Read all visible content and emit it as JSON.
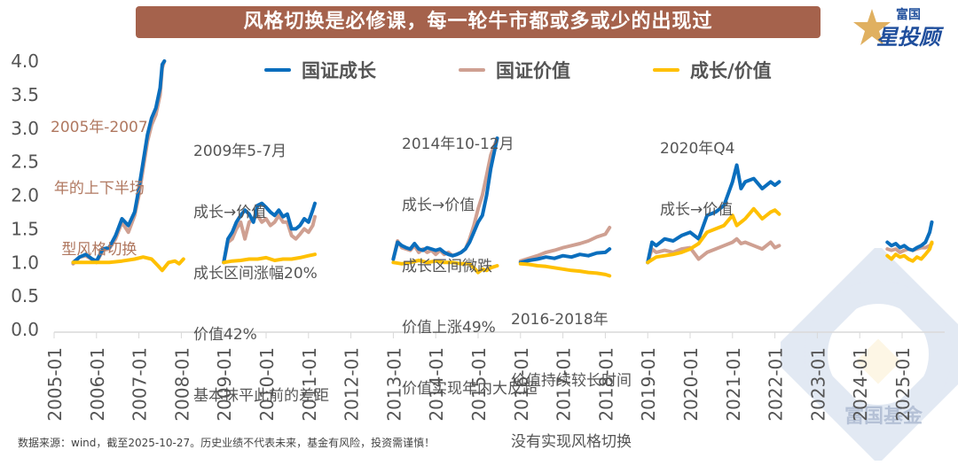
{
  "header": {
    "title": "风格切换是必修课，每一轮牛市都或多或少的出现过",
    "logo_small": "富国",
    "logo_big": "星投顾"
  },
  "footer": {
    "source_note": "数据来源：wind，截至2025-10-27。历史业绩不代表未来，基金有风险，投资需谨慎！"
  },
  "watermark": {
    "text": "富国基金"
  },
  "colors": {
    "growth": "#0a6ebd",
    "value": "#cfa092",
    "ratio": "#ffc000",
    "title_bg": "#a5624c",
    "annotation_brown": "#b07860",
    "text": "#555555"
  },
  "annotations": [
    {
      "id": "a2005",
      "lines": [
        "2005年-2007",
        "年的上下半场",
        "型风格切换"
      ],
      "style": "brown"
    },
    {
      "id": "a2009",
      "lines": [
        "2009年5-7月",
        "成长→价值",
        "成长区间涨幅20%",
        "价值42%",
        "基本抹平此前的差距"
      ],
      "style": "gray"
    },
    {
      "id": "a2014",
      "lines": [
        "2014年10-12月",
        "成长→价值",
        "成长区间微跌",
        "价值上涨49%",
        "价值实现年内大反超"
      ],
      "style": "gray"
    },
    {
      "id": "a2016",
      "lines": [
        "2016-2018年",
        "价值持续较长时间",
        "没有实现风格切换"
      ],
      "style": "gray"
    },
    {
      "id": "a2020",
      "lines": [
        "2020年Q4",
        "成长→价值"
      ],
      "style": "gray"
    }
  ],
  "chart_data": {
    "type": "line",
    "title": "风格切换是必修课，每一轮牛市都或多或少的出现过",
    "xlabel": "",
    "ylabel": "",
    "ylim": [
      0,
      4.0
    ],
    "yticks": [
      "0.0",
      "0.5",
      "1.0",
      "1.5",
      "2.0",
      "2.5",
      "3.0",
      "3.5",
      "4.0"
    ],
    "xlim": [
      2005.0,
      2025.9
    ],
    "xticks": [
      "2005-01",
      "2006-01",
      "2007-01",
      "2008-01",
      "2009-01",
      "2010-01",
      "2011-01",
      "2012-01",
      "2013-01",
      "2014-01",
      "2015-01",
      "2016-01",
      "2017-01",
      "2018-01",
      "2019-01",
      "2020-01",
      "2021-01",
      "2022-01",
      "2023-01",
      "2024-01",
      "2025-01"
    ],
    "grid": false,
    "legend": {
      "position": "top",
      "entries": [
        "国证成长",
        "国证价值",
        "成长/价值"
      ]
    },
    "series": [
      {
        "name": "国证成长",
        "key": "growth",
        "segments": [
          {
            "x": [
              2005.45,
              2005.6,
              2005.75,
              2005.9,
              2006.0,
              2006.15,
              2006.3,
              2006.45,
              2006.6,
              2006.75,
              2006.9,
              2007.0,
              2007.1,
              2007.2,
              2007.3,
              2007.4,
              2007.5,
              2007.55,
              2007.6
            ],
            "y": [
              1.0,
              1.08,
              1.12,
              1.05,
              1.02,
              1.2,
              1.22,
              1.4,
              1.65,
              1.55,
              1.75,
              2.1,
              2.5,
              2.9,
              3.15,
              3.3,
              3.6,
              3.95,
              4.0
            ]
          },
          {
            "x": [
              2009.0,
              2009.1,
              2009.2,
              2009.3,
              2009.4,
              2009.5,
              2009.6,
              2009.7,
              2009.8,
              2009.9,
              2010.0,
              2010.1,
              2010.2,
              2010.3,
              2010.4,
              2010.5,
              2010.6,
              2010.7,
              2010.8,
              2010.9,
              2011.0,
              2011.1,
              2011.15
            ],
            "y": [
              1.0,
              1.35,
              1.45,
              1.6,
              1.7,
              1.78,
              1.72,
              1.6,
              1.85,
              1.88,
              1.82,
              1.75,
              1.7,
              1.78,
              1.68,
              1.72,
              1.5,
              1.5,
              1.55,
              1.65,
              1.6,
              1.78,
              1.88
            ]
          },
          {
            "x": [
              2013.0,
              2013.1,
              2013.2,
              2013.3,
              2013.4,
              2013.5,
              2013.6,
              2013.7,
              2013.8,
              2013.9,
              2014.0,
              2014.1,
              2014.2,
              2014.3,
              2014.4,
              2014.5,
              2014.6,
              2014.7,
              2014.8,
              2014.9,
              2015.0,
              2015.1,
              2015.2,
              2015.3,
              2015.45
            ],
            "y": [
              1.05,
              1.3,
              1.25,
              1.22,
              1.2,
              1.28,
              1.2,
              1.18,
              1.22,
              1.2,
              1.18,
              1.2,
              1.15,
              1.12,
              1.1,
              1.12,
              1.15,
              1.2,
              1.3,
              1.45,
              1.6,
              1.7,
              2.0,
              2.4,
              2.85
            ]
          },
          {
            "x": [
              2016.0,
              2016.2,
              2016.4,
              2016.6,
              2016.8,
              2017.0,
              2017.2,
              2017.4,
              2017.6,
              2017.8,
              2018.0,
              2018.1
            ],
            "y": [
              1.0,
              1.03,
              1.05,
              1.08,
              1.06,
              1.1,
              1.08,
              1.12,
              1.1,
              1.14,
              1.15,
              1.2
            ]
          },
          {
            "x": [
              2019.0,
              2019.1,
              2019.2,
              2019.4,
              2019.6,
              2019.8,
              2020.0,
              2020.2,
              2020.4,
              2020.6,
              2020.8,
              2021.0,
              2021.1,
              2021.2,
              2021.3,
              2021.5,
              2021.7,
              2021.9,
              2022.0,
              2022.1
            ],
            "y": [
              1.0,
              1.3,
              1.25,
              1.35,
              1.32,
              1.4,
              1.45,
              1.35,
              1.7,
              1.75,
              1.85,
              2.2,
              2.45,
              2.1,
              2.2,
              2.25,
              2.1,
              2.2,
              2.15,
              2.2
            ]
          },
          {
            "x": [
              2024.65,
              2024.75,
              2024.85,
              2024.95,
              2025.05,
              2025.15,
              2025.25,
              2025.35,
              2025.45,
              2025.55,
              2025.65,
              2025.7
            ],
            "y": [
              1.3,
              1.25,
              1.28,
              1.22,
              1.25,
              1.2,
              1.18,
              1.22,
              1.25,
              1.3,
              1.45,
              1.6
            ]
          }
        ]
      },
      {
        "name": "国证价值",
        "key": "value",
        "segments": [
          {
            "x": [
              2005.45,
              2005.6,
              2005.75,
              2005.9,
              2006.0,
              2006.15,
              2006.3,
              2006.45,
              2006.6,
              2006.75,
              2006.9,
              2007.0,
              2007.1,
              2007.2,
              2007.3,
              2007.4,
              2007.5,
              2007.55,
              2007.6
            ],
            "y": [
              0.98,
              1.08,
              1.1,
              1.04,
              1.0,
              1.18,
              1.2,
              1.35,
              1.6,
              1.45,
              1.7,
              2.0,
              2.4,
              2.8,
              3.05,
              3.2,
              3.5,
              3.9,
              4.0
            ]
          },
          {
            "x": [
              2009.0,
              2009.1,
              2009.2,
              2009.3,
              2009.4,
              2009.5,
              2009.6,
              2009.7,
              2009.8,
              2009.9,
              2010.0,
              2010.1,
              2010.2,
              2010.3,
              2010.4,
              2010.5,
              2010.6,
              2010.7,
              2010.8,
              2010.9,
              2011.0,
              2011.1,
              2011.15
            ],
            "y": [
              1.0,
              1.3,
              1.35,
              1.5,
              1.6,
              1.35,
              1.6,
              1.65,
              1.7,
              1.6,
              1.65,
              1.55,
              1.6,
              1.7,
              1.6,
              1.6,
              1.4,
              1.35,
              1.42,
              1.5,
              1.45,
              1.55,
              1.68
            ]
          },
          {
            "x": [
              2013.0,
              2013.1,
              2013.2,
              2013.3,
              2013.4,
              2013.5,
              2013.6,
              2013.7,
              2013.8,
              2013.9,
              2014.0,
              2014.1,
              2014.2,
              2014.3,
              2014.4,
              2014.5,
              2014.6,
              2014.7,
              2014.8,
              2014.9,
              2015.0,
              2015.1,
              2015.2,
              2015.3,
              2015.45
            ],
            "y": [
              1.05,
              1.32,
              1.22,
              1.2,
              1.18,
              1.25,
              1.15,
              1.2,
              1.15,
              1.18,
              1.12,
              1.18,
              1.12,
              1.15,
              1.1,
              1.12,
              1.15,
              1.2,
              1.35,
              1.55,
              1.8,
              2.0,
              2.3,
              2.6,
              2.85
            ]
          },
          {
            "x": [
              2016.0,
              2016.2,
              2016.4,
              2016.6,
              2016.8,
              2017.0,
              2017.2,
              2017.4,
              2017.6,
              2017.8,
              2018.0,
              2018.1
            ],
            "y": [
              1.02,
              1.06,
              1.1,
              1.15,
              1.18,
              1.22,
              1.25,
              1.28,
              1.32,
              1.38,
              1.42,
              1.52
            ]
          },
          {
            "x": [
              2019.0,
              2019.1,
              2019.2,
              2019.4,
              2019.6,
              2019.8,
              2020.0,
              2020.2,
              2020.4,
              2020.6,
              2020.8,
              2021.0,
              2021.1,
              2021.2,
              2021.3,
              2021.5,
              2021.7,
              2021.9,
              2022.0,
              2022.1
            ],
            "y": [
              1.0,
              1.2,
              1.15,
              1.18,
              1.15,
              1.2,
              1.22,
              1.05,
              1.15,
              1.2,
              1.25,
              1.3,
              1.35,
              1.28,
              1.3,
              1.25,
              1.2,
              1.3,
              1.22,
              1.25
            ]
          },
          {
            "x": [
              2024.65,
              2024.75,
              2024.85,
              2024.95,
              2025.05,
              2025.15,
              2025.25,
              2025.35,
              2025.45,
              2025.55,
              2025.65,
              2025.7
            ],
            "y": [
              1.2,
              1.18,
              1.2,
              1.15,
              1.18,
              1.2,
              1.18,
              1.2,
              1.22,
              1.22,
              1.25,
              1.28
            ]
          }
        ]
      },
      {
        "name": "成长/价值",
        "key": "ratio",
        "segments": [
          {
            "x": [
              2005.45,
              2005.7,
              2006.0,
              2006.3,
              2006.6,
              2006.9,
              2007.1,
              2007.3,
              2007.45,
              2007.55,
              2007.7,
              2007.85,
              2007.95,
              2008.05
            ],
            "y": [
              1.0,
              1.0,
              1.0,
              1.0,
              1.02,
              1.05,
              1.08,
              1.05,
              0.95,
              0.88,
              1.0,
              1.02,
              0.98,
              1.05
            ]
          },
          {
            "x": [
              2009.0,
              2009.2,
              2009.4,
              2009.6,
              2009.8,
              2010.0,
              2010.2,
              2010.4,
              2010.6,
              2010.8,
              2011.0,
              2011.15
            ],
            "y": [
              1.0,
              1.02,
              1.03,
              1.05,
              1.05,
              1.07,
              1.03,
              1.05,
              1.05,
              1.07,
              1.1,
              1.12
            ]
          },
          {
            "x": [
              2013.0,
              2013.2,
              2013.4,
              2013.6,
              2013.8,
              2014.0,
              2014.2,
              2014.4,
              2014.6,
              2014.8,
              2014.9,
              2015.0,
              2015.1,
              2015.2,
              2015.3,
              2015.45
            ],
            "y": [
              1.0,
              0.98,
              1.0,
              1.03,
              1.0,
              1.02,
              1.0,
              1.0,
              0.98,
              0.98,
              0.92,
              0.85,
              0.9,
              0.88,
              0.92,
              0.95
            ]
          },
          {
            "x": [
              2016.0,
              2016.2,
              2016.4,
              2016.6,
              2016.8,
              2017.0,
              2017.2,
              2017.4,
              2017.6,
              2017.8,
              2018.0,
              2018.1
            ],
            "y": [
              0.98,
              0.97,
              0.95,
              0.94,
              0.92,
              0.9,
              0.88,
              0.87,
              0.85,
              0.84,
              0.82,
              0.8
            ]
          },
          {
            "x": [
              2019.0,
              2019.2,
              2019.4,
              2019.6,
              2019.8,
              2020.0,
              2020.2,
              2020.4,
              2020.6,
              2020.8,
              2021.0,
              2021.1,
              2021.2,
              2021.3,
              2021.5,
              2021.7,
              2021.9,
              2022.0,
              2022.1
            ],
            "y": [
              1.0,
              1.08,
              1.1,
              1.12,
              1.15,
              1.2,
              1.28,
              1.45,
              1.5,
              1.55,
              1.7,
              1.55,
              1.6,
              1.65,
              1.8,
              1.65,
              1.75,
              1.78,
              1.72
            ]
          },
          {
            "x": [
              2024.65,
              2024.75,
              2024.85,
              2024.95,
              2025.05,
              2025.15,
              2025.25,
              2025.35,
              2025.45,
              2025.55,
              2025.65,
              2025.7
            ],
            "y": [
              1.1,
              1.05,
              1.12,
              1.08,
              1.1,
              1.05,
              1.02,
              1.08,
              1.05,
              1.12,
              1.2,
              1.3
            ]
          }
        ]
      }
    ]
  }
}
